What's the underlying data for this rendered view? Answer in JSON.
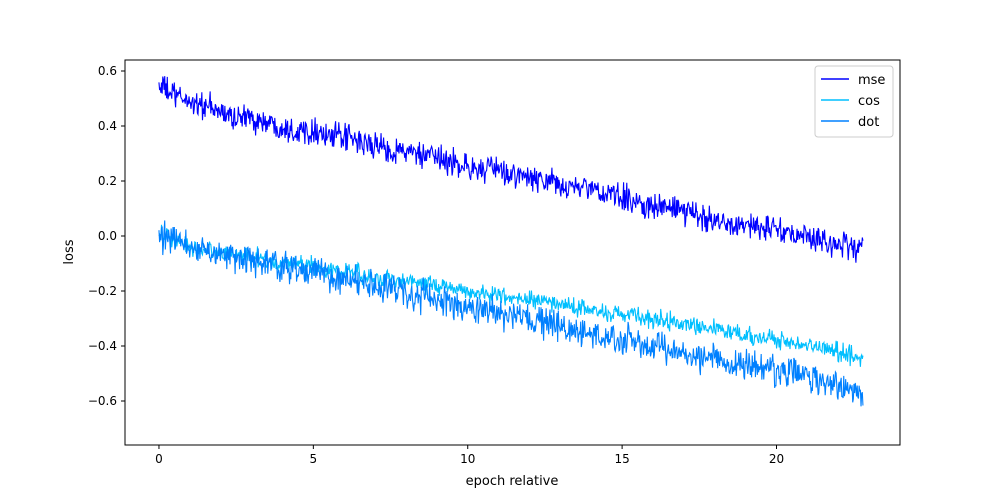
{
  "chart_data": {
    "type": "line",
    "title": "",
    "xlabel": "epoch relative",
    "ylabel": "loss",
    "xlim": [
      -1.1,
      24.0
    ],
    "ylim": [
      -0.76,
      0.64
    ],
    "x_ticks": [
      0,
      5,
      10,
      15,
      20
    ],
    "x_tick_labels": [
      "0",
      "5",
      "10",
      "15",
      "20"
    ],
    "y_ticks": [
      -0.6,
      -0.4,
      -0.2,
      0.0,
      0.2,
      0.4,
      0.6
    ],
    "y_tick_labels": [
      "−0.6",
      "−0.4",
      "−0.2",
      "0.0",
      "0.2",
      "0.4",
      "0.6"
    ],
    "grid": false,
    "legend_position": "top-right",
    "series": [
      {
        "name": "mse",
        "color": "#0000ff",
        "x": [
          0.0,
          0.5,
          1.0,
          1.5,
          2.0,
          2.5,
          3.0,
          3.5,
          4.0,
          4.5,
          5.0,
          5.5,
          6.0,
          6.5,
          7.0,
          7.5,
          8.0,
          8.5,
          9.0,
          9.5,
          10.0,
          10.5,
          11.0,
          11.5,
          12.0,
          12.5,
          13.0,
          13.5,
          14.0,
          14.5,
          15.0,
          15.5,
          16.0,
          16.5,
          17.0,
          17.5,
          18.0,
          18.5,
          19.0,
          19.5,
          20.0,
          20.5,
          21.0,
          21.5,
          22.0,
          22.5,
          22.8
        ],
        "y": [
          0.55,
          0.51,
          0.49,
          0.47,
          0.45,
          0.43,
          0.43,
          0.41,
          0.4,
          0.38,
          0.39,
          0.36,
          0.36,
          0.34,
          0.33,
          0.31,
          0.31,
          0.29,
          0.28,
          0.27,
          0.25,
          0.24,
          0.24,
          0.22,
          0.21,
          0.2,
          0.18,
          0.18,
          0.17,
          0.15,
          0.14,
          0.12,
          0.11,
          0.1,
          0.09,
          0.07,
          0.06,
          0.05,
          0.04,
          0.03,
          0.02,
          0.01,
          -0.01,
          -0.02,
          -0.03,
          -0.04,
          -0.05
        ],
        "noise": 0.045
      },
      {
        "name": "cos",
        "color": "#00bfff",
        "x": [
          0.0,
          0.5,
          1.0,
          1.5,
          2.0,
          2.5,
          3.0,
          3.5,
          4.0,
          4.5,
          5.0,
          5.5,
          6.0,
          6.5,
          7.0,
          7.5,
          8.0,
          8.5,
          9.0,
          9.5,
          10.0,
          10.5,
          11.0,
          11.5,
          12.0,
          12.5,
          13.0,
          13.5,
          14.0,
          14.5,
          15.0,
          15.5,
          16.0,
          16.5,
          17.0,
          17.5,
          18.0,
          18.5,
          19.0,
          19.5,
          20.0,
          20.5,
          21.0,
          21.5,
          22.0,
          22.5,
          22.8
        ],
        "y": [
          0.01,
          -0.02,
          -0.04,
          -0.05,
          -0.06,
          -0.07,
          -0.08,
          -0.09,
          -0.1,
          -0.1,
          -0.11,
          -0.12,
          -0.13,
          -0.14,
          -0.15,
          -0.16,
          -0.16,
          -0.17,
          -0.18,
          -0.19,
          -0.2,
          -0.21,
          -0.22,
          -0.22,
          -0.23,
          -0.24,
          -0.25,
          -0.26,
          -0.27,
          -0.28,
          -0.28,
          -0.29,
          -0.3,
          -0.31,
          -0.32,
          -0.33,
          -0.34,
          -0.35,
          -0.36,
          -0.37,
          -0.38,
          -0.39,
          -0.4,
          -0.41,
          -0.42,
          -0.44,
          -0.45
        ],
        "noise": 0.03
      },
      {
        "name": "dot",
        "color": "#0080ff",
        "x": [
          0.0,
          0.5,
          1.0,
          1.5,
          2.0,
          2.5,
          3.0,
          3.5,
          4.0,
          4.5,
          5.0,
          5.5,
          6.0,
          6.5,
          7.0,
          7.5,
          8.0,
          8.5,
          9.0,
          9.5,
          10.0,
          10.5,
          11.0,
          11.5,
          12.0,
          12.5,
          13.0,
          13.5,
          14.0,
          14.5,
          15.0,
          15.5,
          16.0,
          16.5,
          17.0,
          17.5,
          18.0,
          18.5,
          19.0,
          19.5,
          20.0,
          20.5,
          21.0,
          21.5,
          22.0,
          22.5,
          22.8
        ],
        "y": [
          0.0,
          -0.02,
          -0.04,
          -0.05,
          -0.06,
          -0.08,
          -0.09,
          -0.1,
          -0.11,
          -0.12,
          -0.13,
          -0.14,
          -0.16,
          -0.17,
          -0.18,
          -0.19,
          -0.21,
          -0.22,
          -0.23,
          -0.25,
          -0.26,
          -0.27,
          -0.28,
          -0.3,
          -0.31,
          -0.32,
          -0.33,
          -0.35,
          -0.36,
          -0.37,
          -0.38,
          -0.39,
          -0.4,
          -0.41,
          -0.43,
          -0.44,
          -0.45,
          -0.46,
          -0.47,
          -0.48,
          -0.49,
          -0.5,
          -0.51,
          -0.53,
          -0.55,
          -0.56,
          -0.58
        ],
        "noise": 0.05
      }
    ]
  }
}
